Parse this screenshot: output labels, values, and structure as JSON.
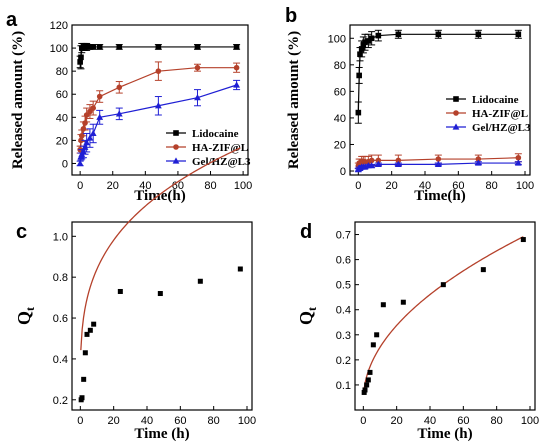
{
  "chart_data": [
    {
      "panel": "a",
      "type": "line",
      "xlabel": "Time(h)",
      "ylabel": "Released amount (%)",
      "xlim": [
        -5,
        103
      ],
      "ylim": [
        -10,
        120
      ],
      "xticks": [
        "0",
        "20",
        "40",
        "60",
        "80",
        "100"
      ],
      "xtick_values": [
        0,
        20,
        40,
        60,
        80,
        100
      ],
      "yticks": [
        "0",
        "20",
        "40",
        "60",
        "80",
        "100",
        "120"
      ],
      "ytick_values": [
        0,
        20,
        40,
        60,
        80,
        100,
        120
      ],
      "legend_position": "bottom-right",
      "series": [
        {
          "name": "Lidocaine",
          "color": "#000000",
          "marker": "square",
          "x": [
            0,
            0.5,
            1,
            2,
            3,
            4,
            6,
            8,
            12,
            24,
            48,
            72,
            96
          ],
          "y": [
            88,
            92,
            100,
            101,
            101,
            101,
            101,
            101,
            101,
            101,
            101,
            101,
            101
          ],
          "err": [
            5,
            10,
            4,
            3,
            3,
            3,
            2,
            2,
            2,
            2,
            2,
            2,
            2
          ]
        },
        {
          "name": "HA-ZIF@L",
          "color": "#b5412b",
          "marker": "circle",
          "x": [
            0,
            0.5,
            1,
            2,
            3,
            4,
            6,
            8,
            12,
            24,
            48,
            72,
            96
          ],
          "y": [
            12,
            20,
            24,
            30,
            35,
            42,
            45,
            48,
            58,
            66,
            80,
            83,
            83
          ],
          "err": [
            3,
            5,
            5,
            6,
            6,
            6,
            6,
            6,
            5,
            5,
            8,
            3,
            4
          ]
        },
        {
          "name": "Gel/HZ@L3",
          "color": "#1f1fd4",
          "marker": "triangle",
          "x": [
            0,
            0.5,
            1,
            2,
            3,
            4,
            6,
            8,
            12,
            24,
            48,
            72,
            96
          ],
          "y": [
            0,
            6,
            8,
            10,
            14,
            18,
            22,
            26,
            40,
            43,
            50,
            57,
            68
          ],
          "err": [
            2,
            3,
            4,
            5,
            6,
            8,
            8,
            8,
            6,
            5,
            8,
            7,
            4
          ]
        }
      ]
    },
    {
      "panel": "b",
      "type": "line",
      "xlabel": "Time(h)",
      "ylabel": "Released amount (%)",
      "xlim": [
        -5,
        103
      ],
      "ylim": [
        -3,
        110
      ],
      "xticks": [
        "0",
        "20",
        "40",
        "60",
        "80",
        "100"
      ],
      "xtick_values": [
        0,
        20,
        40,
        60,
        80,
        100
      ],
      "yticks": [
        "0",
        "20",
        "40",
        "60",
        "80",
        "100"
      ],
      "ytick_values": [
        0,
        20,
        40,
        60,
        80,
        100
      ],
      "legend_position": "middle-right",
      "series": [
        {
          "name": "Lidocaine",
          "color": "#000000",
          "marker": "square",
          "x": [
            0,
            0.5,
            1,
            2,
            3,
            4,
            6,
            8,
            12,
            24,
            48,
            72,
            96
          ],
          "y": [
            44,
            72,
            88,
            92,
            95,
            97,
            98,
            100,
            102,
            103,
            103,
            103,
            103
          ],
          "err": [
            8,
            6,
            5,
            6,
            6,
            6,
            5,
            5,
            4,
            3,
            3,
            3,
            3
          ]
        },
        {
          "name": "HA-ZIF@L",
          "color": "#b5412b",
          "marker": "circle",
          "x": [
            0,
            0.5,
            1,
            2,
            3,
            4,
            6,
            8,
            12,
            24,
            48,
            72,
            96
          ],
          "y": [
            4,
            6,
            6,
            7,
            7,
            7,
            7,
            8,
            8,
            8,
            9,
            9,
            10
          ],
          "err": [
            2,
            3,
            3,
            4,
            4,
            4,
            4,
            4,
            4,
            4,
            3,
            3,
            3
          ]
        },
        {
          "name": "Gel/HZ@L3",
          "color": "#1f1fd4",
          "marker": "triangle",
          "x": [
            0,
            0.5,
            1,
            2,
            3,
            4,
            6,
            8,
            12,
            24,
            48,
            72,
            96
          ],
          "y": [
            1,
            2,
            2,
            3,
            3,
            3,
            4,
            4,
            5,
            5,
            5,
            6,
            6
          ],
          "err": [
            1,
            1,
            1,
            1,
            1,
            1,
            1,
            1,
            1,
            1,
            1,
            1,
            1
          ]
        }
      ]
    },
    {
      "panel": "c",
      "type": "scatter",
      "xlabel": "Time (h)",
      "ylabel": "Q",
      "ylabel_sub": "t",
      "xlim": [
        -5,
        103
      ],
      "ylim": [
        0.15,
        1.07
      ],
      "xticks": [
        "0",
        "20",
        "40",
        "60",
        "80",
        "100"
      ],
      "xtick_values": [
        0,
        20,
        40,
        60,
        80,
        100
      ],
      "yticks": [
        "0.2",
        "0.4",
        "0.6",
        "0.8",
        "1.0"
      ],
      "ytick_values": [
        0.2,
        0.4,
        0.6,
        0.8,
        1.0
      ],
      "points_x": [
        0.5,
        1,
        2,
        3,
        4,
        6,
        8,
        24,
        48,
        72,
        96
      ],
      "points_y": [
        0.2,
        0.21,
        0.3,
        0.43,
        0.52,
        0.54,
        0.57,
        0.73,
        0.72,
        0.78,
        0.84
      ],
      "fit_color": "#b5412b",
      "fit": {
        "a": 0.23,
        "k": 0.3058,
        "n": 0.3
      },
      "fit_range": [
        0.3,
        96
      ],
      "marker_color": "#000000"
    },
    {
      "panel": "d",
      "type": "scatter",
      "xlabel": "Time (h)",
      "ylabel": "Q",
      "ylabel_sub": "t",
      "xlim": [
        -5,
        103
      ],
      "ylim": [
        0.0,
        0.75
      ],
      "xticks": [
        "0",
        "20",
        "40",
        "60",
        "80",
        "100"
      ],
      "xtick_values": [
        0,
        20,
        40,
        60,
        80,
        100
      ],
      "yticks": [
        "0.1",
        "0.2",
        "0.3",
        "0.4",
        "0.5",
        "0.6",
        "0.7"
      ],
      "ytick_values": [
        0.1,
        0.2,
        0.3,
        0.4,
        0.5,
        0.6,
        0.7
      ],
      "points_x": [
        0.5,
        1,
        2,
        3,
        4,
        6,
        8,
        12,
        24,
        48,
        72,
        96
      ],
      "points_y": [
        0.07,
        0.08,
        0.1,
        0.12,
        0.15,
        0.26,
        0.3,
        0.42,
        0.43,
        0.5,
        0.56,
        0.68
      ],
      "fit_color": "#b5412b",
      "fit": {
        "a": 0.04,
        "k": 0.0665,
        "n": 0.5
      },
      "fit_range": [
        0.3,
        96
      ],
      "marker_color": "#000000"
    }
  ],
  "panels": [
    "a",
    "b",
    "c",
    "d"
  ]
}
